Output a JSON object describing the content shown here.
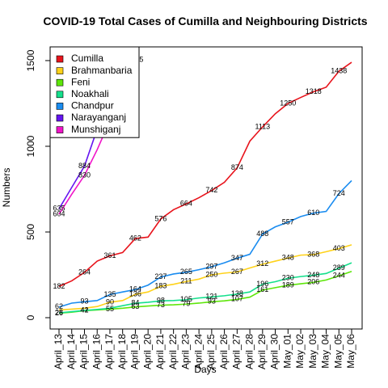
{
  "chart_data": {
    "type": "line",
    "title": "COVID-19 Total Cases of Cumilla and Neighbouring Districts",
    "x_label": "Days",
    "y_label": "Numbers",
    "categories": [
      "April_13",
      "April_14",
      "April_15",
      "April_16",
      "April_17",
      "April_18",
      "April_19",
      "April_20",
      "April_21",
      "April_22",
      "April_23",
      "April_24",
      "April_25",
      "April_26",
      "April_27",
      "April_28",
      "April_29",
      "April_30",
      "May_01",
      "May_02",
      "May_03",
      "May_04",
      "May_05",
      "May_06"
    ],
    "ylim": [
      -66,
      1580
    ],
    "yticks": [
      0,
      500,
      1000,
      1500
    ],
    "legend": "topleft",
    "series": [
      {
        "name": "Cumilla",
        "color": "#e8141c",
        "values": [
          182,
          215,
          264,
          330,
          361,
          380,
          462,
          470,
          576,
          630,
          664,
          700,
          742,
          790,
          874,
          1030,
          1113,
          1190,
          1250,
          1285,
          1318,
          1345,
          1438,
          1490
        ],
        "value_labels": [
          182,
          null,
          264,
          null,
          361,
          null,
          462,
          null,
          576,
          null,
          664,
          null,
          742,
          null,
          874,
          null,
          1113,
          null,
          1250,
          null,
          1318,
          null,
          1438,
          null
        ]
      },
      {
        "name": "Brahmanbaria",
        "color": "#ffd21a",
        "values": [
          45,
          50,
          55,
          65,
          90,
          100,
          136,
          150,
          183,
          195,
          211,
          225,
          250,
          260,
          267,
          290,
          312,
          330,
          348,
          365,
          368,
          385,
          403,
          425
        ],
        "value_labels": [
          null,
          null,
          null,
          null,
          90,
          null,
          136,
          null,
          183,
          null,
          211,
          null,
          250,
          null,
          267,
          null,
          312,
          null,
          348,
          null,
          368,
          null,
          403,
          null
        ]
      },
      {
        "name": "Feni",
        "color": "#5ee60a",
        "values": [
          26,
          32,
          41,
          45,
          50,
          55,
          63,
          68,
          73,
          75,
          79,
          85,
          93,
          98,
          107,
          120,
          161,
          175,
          189,
          198,
          206,
          220,
          244,
          270
        ],
        "value_labels": [
          26,
          null,
          41,
          null,
          55,
          null,
          63,
          null,
          73,
          null,
          79,
          null,
          93,
          null,
          107,
          null,
          161,
          null,
          189,
          null,
          206,
          null,
          244,
          null
        ]
      },
      {
        "name": "Noakhali",
        "color": "#14e08c",
        "values": [
          28,
          35,
          42,
          48,
          55,
          70,
          84,
          90,
          98,
          100,
          105,
          115,
          121,
          128,
          138,
          150,
          196,
          210,
          230,
          240,
          248,
          258,
          289,
          320
        ],
        "value_labels": [
          28,
          null,
          42,
          null,
          null,
          null,
          84,
          null,
          98,
          null,
          105,
          null,
          121,
          null,
          138,
          null,
          196,
          null,
          230,
          null,
          248,
          null,
          289,
          null
        ]
      },
      {
        "name": "Chandpur",
        "color": "#1a8cf0",
        "values": [
          62,
          85,
          93,
          100,
          135,
          150,
          164,
          190,
          237,
          255,
          265,
          280,
          297,
          320,
          347,
          370,
          488,
          530,
          557,
          590,
          610,
          620,
          724,
          800
        ],
        "value_labels": [
          62,
          null,
          93,
          null,
          135,
          null,
          164,
          null,
          237,
          null,
          265,
          null,
          297,
          null,
          347,
          null,
          488,
          null,
          557,
          null,
          610,
          null,
          724,
          null
        ]
      },
      {
        "name": "Narayanganj",
        "color": "#6414f0",
        "values": [
          635,
          760,
          884,
          1100,
          1400,
          null,
          null,
          null,
          null,
          null,
          null,
          null,
          null,
          null,
          null,
          null,
          null,
          null,
          null,
          null,
          null,
          null,
          null,
          null
        ],
        "value_labels": [
          635,
          null,
          884,
          null,
          null,
          null,
          null,
          null,
          null,
          null,
          null,
          null,
          null,
          null,
          null,
          null,
          null,
          null,
          null,
          null,
          null,
          null,
          null,
          null
        ]
      },
      {
        "name": "Munshiganj",
        "color": "#f014c8",
        "values": [
          604,
          720,
          830,
          980,
          1150,
          1300,
          1505,
          null,
          null,
          null,
          null,
          null,
          null,
          null,
          null,
          null,
          null,
          null,
          null,
          null,
          null,
          null,
          null,
          null
        ],
        "value_labels": [
          604,
          null,
          830,
          null,
          null,
          null,
          1505,
          null,
          null,
          null,
          null,
          null,
          null,
          null,
          null,
          null,
          null,
          null,
          null,
          null,
          null,
          null,
          null,
          null
        ]
      }
    ]
  }
}
